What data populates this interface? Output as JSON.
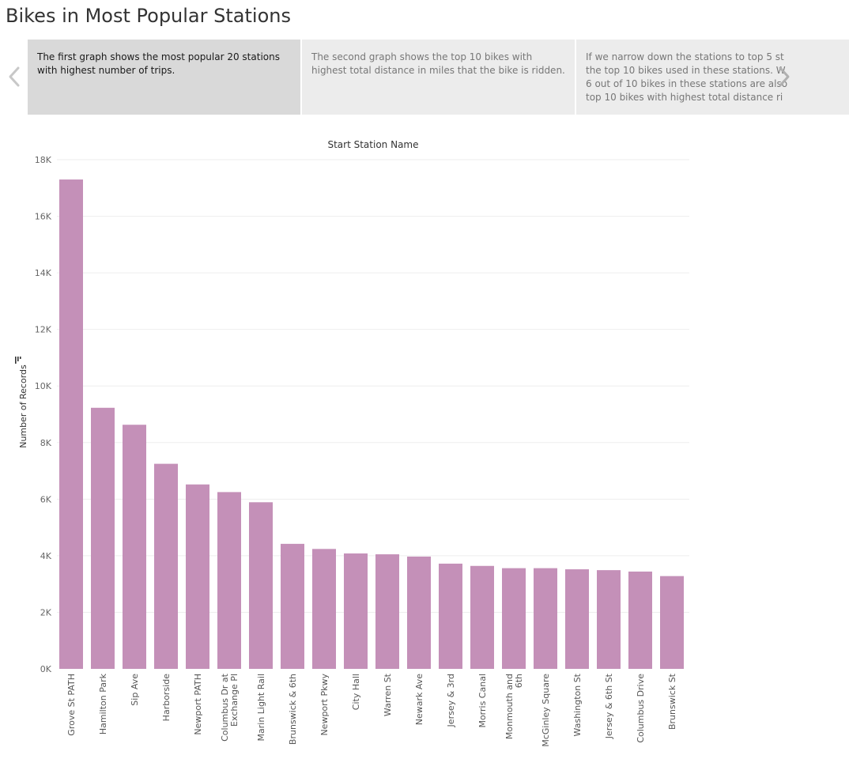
{
  "page": {
    "title": "Bikes in Most Popular Stations"
  },
  "story": {
    "points": [
      {
        "text": "The first graph shows the most popular 20 stations with highest number of trips.",
        "active": true
      },
      {
        "text": "The second graph shows the top 10 bikes with highest total distance in miles that the bike is ridden.",
        "active": false
      },
      {
        "lines": [
          "If we narrow down the stations to top 5 st",
          "the top 10 bikes used in these stations. W",
          "6 out of 10 bikes in these stations are also",
          "top 10 bikes with highest total distance ri"
        ],
        "active": false
      }
    ],
    "prev_icon": "chevron-left-icon",
    "next_icon": "chevron-right-icon"
  },
  "chart_data": {
    "type": "bar",
    "title": "Start Station Name",
    "xlabel": "Start Station Name",
    "ylabel": "Number of Records",
    "ylim": [
      0,
      18000
    ],
    "yticks": [
      0,
      2000,
      4000,
      6000,
      8000,
      10000,
      12000,
      14000,
      16000,
      18000
    ],
    "ytick_labels": [
      "0K",
      "2K",
      "4K",
      "6K",
      "8K",
      "10K",
      "12K",
      "14K",
      "16K",
      "18K"
    ],
    "grid": true,
    "sort_icon": "sort-descending-icon",
    "bar_color": "#c490b8",
    "categories": [
      [
        "Grove St PATH"
      ],
      [
        "Hamilton Park"
      ],
      [
        "Sip Ave"
      ],
      [
        "Harborside"
      ],
      [
        "Newport PATH"
      ],
      [
        "Columbus Dr at",
        "Exchange Pl"
      ],
      [
        "Marin Light Rail"
      ],
      [
        "Brunswick & 6th"
      ],
      [
        "Newport Pkwy"
      ],
      [
        "City Hall"
      ],
      [
        "Warren St"
      ],
      [
        "Newark Ave"
      ],
      [
        "Jersey & 3rd"
      ],
      [
        "Morris Canal"
      ],
      [
        "Monmouth and",
        "6th"
      ],
      [
        "McGinley Square"
      ],
      [
        "Washington St"
      ],
      [
        "Jersey & 6th St"
      ],
      [
        "Columbus Drive"
      ],
      [
        "Brunswick St"
      ]
    ],
    "values": [
      17300,
      9230,
      8630,
      7250,
      6520,
      6250,
      5890,
      4420,
      4240,
      4080,
      4050,
      3970,
      3720,
      3640,
      3560,
      3560,
      3520,
      3490,
      3440,
      3280
    ]
  }
}
